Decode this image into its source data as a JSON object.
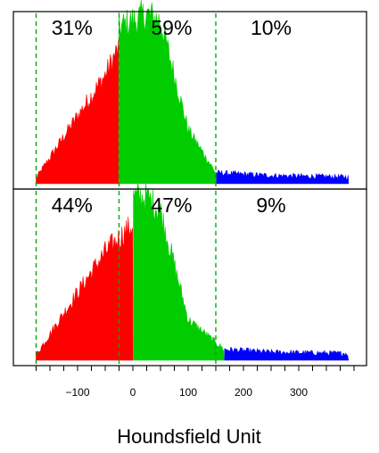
{
  "chart_data": {
    "type": "area",
    "xlabel": "Houndsfield Unit",
    "x_ticks": [
      -100,
      0,
      100,
      200,
      300
    ],
    "x_tick_labels": [
      "−100",
      "0",
      "100",
      "200",
      "300"
    ],
    "xlim": [
      -190,
      400
    ],
    "minor_tick_step": 25,
    "grid": false,
    "panels": [
      {
        "percentages": [
          "31%",
          "59%",
          "10%"
        ],
        "region_bounds_hu": [
          -25,
          150
        ],
        "dashed_lines_hu": [
          -175,
          -25,
          150
        ],
        "series": [
          {
            "values_x": [
              -175,
              -100,
              -50,
              -26
            ],
            "values_y": [
              0.04,
              0.5,
              0.8,
              1.0
            ]
          },
          {
            "values_x": [
              -25,
              25,
              50,
              100,
              150
            ],
            "values_y": [
              1.15,
              1.25,
              1.2,
              0.4,
              0.08
            ]
          },
          {
            "values_x": [
              151,
              250,
              390
            ],
            "values_y": [
              0.08,
              0.06,
              0.05
            ]
          }
        ]
      },
      {
        "percentages": [
          "44%",
          "47%",
          "9%"
        ],
        "region_bounds_hu": [
          0,
          165
        ],
        "dashed_lines_hu": [
          -175,
          -25,
          150
        ],
        "series": [
          {
            "values_x": [
              -175,
              -100,
              -50,
              0
            ],
            "values_y": [
              0.04,
              0.5,
              0.8,
              1.0
            ]
          },
          {
            "values_x": [
              1,
              25,
              50,
              100,
              165
            ],
            "values_y": [
              1.2,
              1.2,
              1.1,
              0.3,
              0.08
            ]
          },
          {
            "values_x": [
              166,
              250,
              390
            ],
            "values_y": [
              0.08,
              0.06,
              0.05
            ]
          }
        ]
      }
    ],
    "colors": {
      "region_low": "#ff0000",
      "region_mid": "#00cc00",
      "region_high": "#0000ff",
      "dashed_line": "#00aa00",
      "axis": "#000000"
    }
  }
}
